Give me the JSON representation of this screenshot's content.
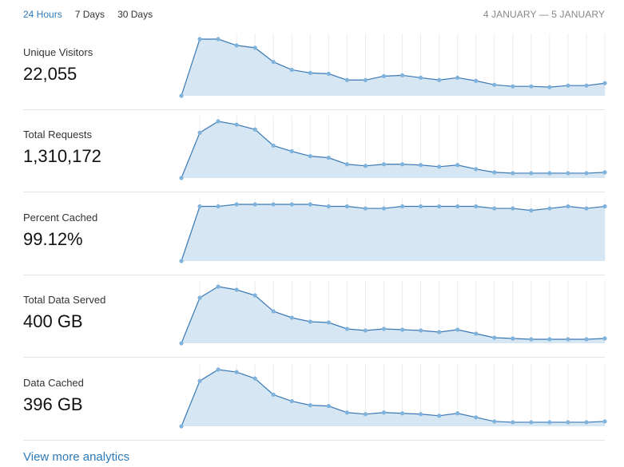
{
  "tabs": [
    {
      "label": "24 Hours",
      "active": true
    },
    {
      "label": "7 Days",
      "active": false
    },
    {
      "label": "30 Days",
      "active": false
    }
  ],
  "date_range": "4 JANUARY — 5 JANUARY",
  "colors": {
    "line": "#3a78b4",
    "fill": "#d6e7f3",
    "point": "#7fb3dc",
    "grid": "#ececec",
    "accent": "#2f7ab8"
  },
  "metrics": [
    {
      "label": "Unique Visitors",
      "value": "22,055",
      "series": [
        0,
        72,
        72,
        64,
        61,
        43,
        33,
        29,
        28,
        20,
        20,
        25,
        26,
        23,
        20,
        23,
        19,
        14,
        12,
        12,
        11,
        13,
        13,
        16
      ]
    },
    {
      "label": "Total Requests",
      "value": "1,310,172",
      "series": [
        0,
        56,
        70,
        66,
        60,
        40,
        33,
        27,
        25,
        17,
        15,
        17,
        17,
        16,
        14,
        16,
        11,
        7,
        6,
        6,
        6,
        6,
        6,
        7
      ]
    },
    {
      "label": "Percent Cached",
      "value": "99.12%",
      "series": [
        96.6,
        99.3,
        99.3,
        99.4,
        99.4,
        99.4,
        99.4,
        99.4,
        99.3,
        99.3,
        99.2,
        99.2,
        99.3,
        99.3,
        99.3,
        99.3,
        99.3,
        99.2,
        99.2,
        99.1,
        99.2,
        99.3,
        99.2,
        99.3
      ]
    },
    {
      "label": "Total Data Served",
      "value": "400 GB",
      "series": [
        0,
        57,
        71,
        67,
        60,
        40,
        32,
        27,
        26,
        18,
        16,
        18,
        17,
        16,
        14,
        17,
        12,
        7,
        6,
        5,
        5,
        5,
        5,
        6
      ]
    },
    {
      "label": "Data Cached",
      "value": "396 GB",
      "series": [
        0,
        56,
        70,
        67,
        59,
        39,
        31,
        26,
        25,
        17,
        15,
        17,
        16,
        15,
        13,
        16,
        11,
        6,
        5,
        5,
        5,
        5,
        5,
        6
      ]
    }
  ],
  "link_label": "View more analytics"
}
